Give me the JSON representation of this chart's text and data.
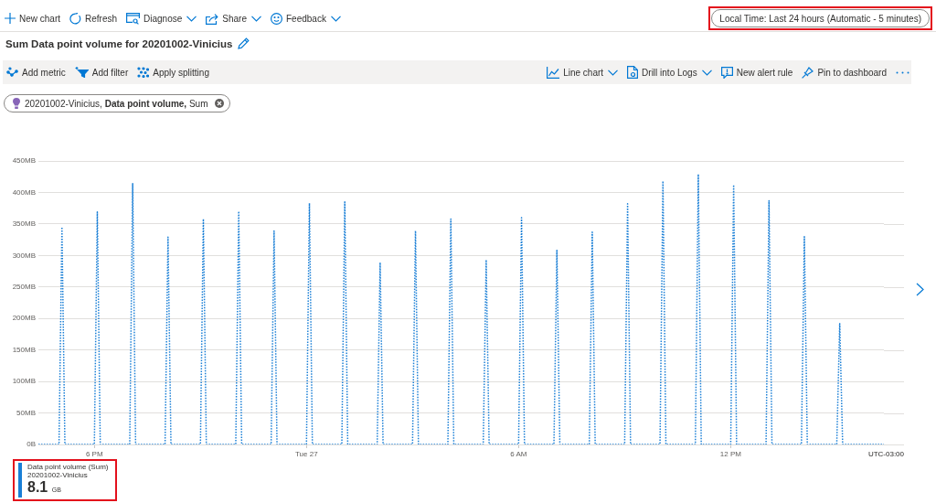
{
  "chart_data": {
    "type": "line",
    "title": "Sum Data point volume for 20201002-Vinicius",
    "xlabel": "UTC-03:00",
    "annotations": [
      "New chart",
      "Refresh",
      "Diagnose",
      "Share",
      "Feedback",
      "Local Time: Last 24 hours (Automatic - 5 minutes)",
      "Add metric",
      "Add filter",
      "Apply splitting",
      "Line chart",
      "Drill into Logs",
      "New alert rule",
      "Pin to dashboard",
      "20201002-Vinicius, Data point volume, Sum",
      "20201002-Vinicius",
      "8.1 GB"
    ],
    "categories": [
      null,
      null,
      null,
      null,
      null,
      null,
      null,
      null,
      null,
      null,
      null,
      null,
      null,
      null,
      null,
      null,
      null,
      null,
      null,
      "6 PM",
      null,
      null,
      null,
      null,
      null,
      null,
      null,
      null,
      null,
      null,
      null,
      null,
      null,
      null,
      null,
      null,
      null,
      null,
      null,
      null,
      null,
      null,
      null,
      null,
      null,
      null,
      null,
      null,
      null,
      null,
      null,
      null,
      null,
      null,
      null,
      null,
      null,
      null,
      null,
      null,
      null,
      null,
      null,
      null,
      null,
      null,
      null,
      null,
      null,
      null,
      null,
      null,
      null,
      null,
      null,
      null,
      null,
      null,
      null,
      null,
      null,
      null,
      null,
      null,
      null,
      null,
      null,
      null,
      null,
      null,
      null,
      "Tue 27",
      null,
      null,
      null,
      null,
      null,
      null,
      null,
      null,
      null,
      null,
      null,
      null,
      null,
      null,
      null,
      null,
      null,
      null,
      null,
      null,
      null,
      null,
      null,
      null,
      null,
      null,
      null,
      null,
      null,
      null,
      null,
      null,
      null,
      null,
      null,
      null,
      null,
      null,
      null,
      null,
      null,
      null,
      null,
      null,
      null,
      null,
      null,
      null,
      null,
      null,
      null,
      null,
      null,
      null,
      null,
      null,
      null,
      null,
      null,
      null,
      null,
      null,
      null,
      null,
      null,
      null,
      null,
      null,
      null,
      null,
      null,
      "6 AM",
      null,
      null,
      null,
      null,
      null,
      null,
      null,
      null,
      null,
      null,
      null,
      null,
      null,
      null,
      null,
      null,
      null,
      null,
      null,
      null,
      null,
      null,
      null,
      null,
      null,
      null,
      null,
      null,
      null,
      null,
      null,
      null,
      null,
      null,
      null,
      null,
      null,
      null,
      null,
      null,
      null,
      null,
      null,
      null,
      null,
      null,
      null,
      null,
      null,
      null,
      null,
      null,
      null,
      null,
      null,
      null,
      null,
      null,
      null,
      null,
      null,
      null,
      null,
      null,
      null,
      null,
      null,
      null,
      null,
      null,
      null,
      "12 PM",
      null,
      null,
      null,
      null,
      null,
      null,
      null,
      null,
      null,
      null,
      null,
      null,
      null,
      null,
      null,
      null,
      null,
      null,
      null,
      null,
      null,
      null,
      null,
      null,
      null,
      null,
      null,
      null,
      null,
      null,
      null,
      null,
      null,
      null,
      null,
      null,
      null,
      null,
      null,
      null,
      null,
      null,
      null,
      null,
      null,
      null,
      null,
      null,
      null,
      null,
      null,
      null
    ],
    "series": [
      {
        "name": "Data point volume (Sum)",
        "color": "#1a7fd6",
        "values": [
          0,
          0,
          0,
          0,
          0,
          0,
          0,
          0,
          345,
          0,
          0,
          0,
          0,
          0,
          0,
          0,
          0,
          0,
          0,
          0,
          369,
          0,
          0,
          0,
          0,
          0,
          0,
          0,
          0,
          0,
          0,
          0,
          414,
          0,
          0,
          0,
          0,
          0,
          0,
          0,
          0,
          0,
          0,
          0,
          329,
          0,
          0,
          0,
          0,
          0,
          0,
          0,
          0,
          0,
          0,
          0,
          358,
          0,
          0,
          0,
          0,
          0,
          0,
          0,
          0,
          0,
          0,
          0,
          370,
          0,
          0,
          0,
          0,
          0,
          0,
          0,
          0,
          0,
          0,
          0,
          339,
          0,
          0,
          0,
          0,
          0,
          0,
          0,
          0,
          0,
          0,
          0,
          383,
          0,
          0,
          0,
          0,
          0,
          0,
          0,
          0,
          0,
          0,
          0,
          385,
          0,
          0,
          0,
          0,
          0,
          0,
          0,
          0,
          0,
          0,
          0,
          289,
          0,
          0,
          0,
          0,
          0,
          0,
          0,
          0,
          0,
          0,
          0,
          339,
          0,
          0,
          0,
          0,
          0,
          0,
          0,
          0,
          0,
          0,
          0,
          358,
          0,
          0,
          0,
          0,
          0,
          0,
          0,
          0,
          0,
          0,
          0,
          293,
          0,
          0,
          0,
          0,
          0,
          0,
          0,
          0,
          0,
          0,
          0,
          360,
          0,
          0,
          0,
          0,
          0,
          0,
          0,
          0,
          0,
          0,
          0,
          308,
          0,
          0,
          0,
          0,
          0,
          0,
          0,
          0,
          0,
          0,
          0,
          337,
          0,
          0,
          0,
          0,
          0,
          0,
          0,
          0,
          0,
          0,
          0,
          382,
          0,
          0,
          0,
          0,
          0,
          0,
          0,
          0,
          0,
          0,
          0,
          418,
          0,
          0,
          0,
          0,
          0,
          0,
          0,
          0,
          0,
          0,
          0,
          429,
          0,
          0,
          0,
          0,
          0,
          0,
          0,
          0,
          0,
          0,
          0,
          412,
          0,
          0,
          0,
          0,
          0,
          0,
          0,
          0,
          0,
          0,
          0,
          387,
          0,
          0,
          0,
          0,
          0,
          0,
          0,
          0,
          0,
          0,
          0,
          330,
          0,
          0,
          0,
          0,
          0,
          0,
          0,
          0,
          0,
          0,
          0,
          192,
          0,
          0,
          0,
          0,
          0,
          0,
          0,
          0,
          0,
          0,
          0,
          0,
          0,
          0,
          0
        ]
      }
    ],
    "ylim": [
      0,
      450
    ],
    "yticks": [
      {
        "value": 0,
        "label": "0B"
      },
      {
        "value": 50,
        "label": "50MB"
      },
      {
        "value": 100,
        "label": "100MB"
      },
      {
        "value": 150,
        "label": "150MB"
      },
      {
        "value": 200,
        "label": "200MB"
      },
      {
        "value": 250,
        "label": "250MB"
      },
      {
        "value": 300,
        "label": "300MB"
      },
      {
        "value": 350,
        "label": "350MB"
      },
      {
        "value": 400,
        "label": "400MB"
      },
      {
        "value": 450,
        "label": "450MB"
      }
    ],
    "grid": "y",
    "legend": "bottom left",
    "marker": "none",
    "line_style": "dotted"
  }
}
